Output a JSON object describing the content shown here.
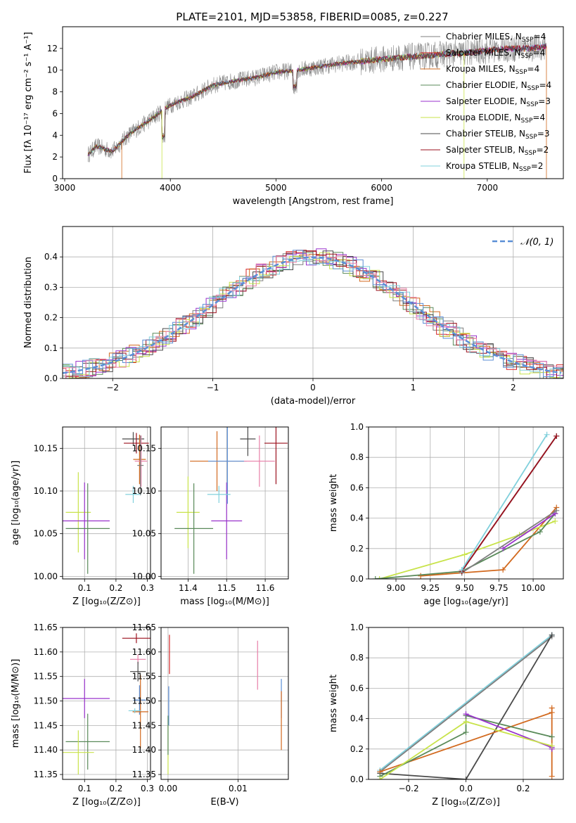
{
  "colors": {
    "gray": "#7f7f7f",
    "red": "#d62728",
    "orange": "#d2691e",
    "green": "#5a8a5a",
    "purple": "#9932cc",
    "yellow": "#c8e34a",
    "dark": "#4a4a4a",
    "darkred": "#9b111e",
    "cyan": "#80d0dc",
    "blue": "#5b8fd6",
    "pink": "#e87fa8",
    "grid": "#b0b0b0"
  },
  "legend_entries": [
    {
      "name": "Chabrier MILES, N$_{SSP}$=4",
      "label": "Chabrier MILES, N",
      "sub": "SSP",
      "tail": "=4",
      "color": "gray"
    },
    {
      "name": "Salpeter MILES, N$_{SSP}$=4",
      "label": "Salpeter MILES, N",
      "sub": "SSP",
      "tail": "=4",
      "color": "red"
    },
    {
      "name": "Kroupa MILES, N$_{SSP}$=4",
      "label": "Kroupa MILES, N",
      "sub": "SSP",
      "tail": "=4",
      "color": "orange"
    },
    {
      "name": "Chabrier ELODIE, N$_{SSP}$=4",
      "label": "Chabrier ELODIE, N",
      "sub": "SSP",
      "tail": "=4",
      "color": "green"
    },
    {
      "name": "Salpeter ELODIE, N$_{SSP}$=3",
      "label": "Salpeter ELODIE, N",
      "sub": "SSP",
      "tail": "=3",
      "color": "purple"
    },
    {
      "name": "Kroupa ELODIE, N$_{SSP}$=4",
      "label": "Kroupa ELODIE, N",
      "sub": "SSP",
      "tail": "=4",
      "color": "yellow"
    },
    {
      "name": "Chabrier STELIB, N$_{SSP}$=3",
      "label": "Chabrier STELIB, N",
      "sub": "SSP",
      "tail": "=3",
      "color": "dark"
    },
    {
      "name": "Salpeter STELIB, N$_{SSP}$=2",
      "label": "Salpeter STELIB, N",
      "sub": "SSP",
      "tail": "=2",
      "color": "darkred"
    },
    {
      "name": "Kroupa STELIB, N$_{SSP}$=2",
      "label": "Kroupa STELIB, N",
      "sub": "SSP",
      "tail": "=2",
      "color": "cyan"
    }
  ],
  "chart_data": [
    {
      "type": "line",
      "title": "PLATE=2101, MJD=53858, FIBERID=0085, z=0.227",
      "xlabel": "wavelength [Angstrom, rest frame]",
      "ylabel": "Flux [fλ 10⁻¹⁷ erg cm⁻² s⁻¹ A⁻¹]",
      "xlim": [
        2980,
        7720
      ],
      "ylim": [
        0,
        14
      ],
      "xticks": [
        3000,
        4000,
        5000,
        6000,
        7000
      ],
      "yticks": [
        0,
        2,
        4,
        6,
        8,
        10,
        12
      ],
      "legend": "upper right",
      "spectrum_envelope": {
        "x": [
          3220,
          3300,
          3450,
          3600,
          3700,
          3850,
          3950,
          4050,
          4200,
          4400,
          4600,
          4800,
          5000,
          5200,
          5400,
          5600,
          5800,
          6000,
          6200,
          6400,
          6600,
          6800,
          7000,
          7200,
          7400,
          7560
        ],
        "y": [
          2.2,
          3.0,
          2.5,
          4.0,
          4.7,
          5.7,
          6.5,
          7.0,
          7.5,
          8.6,
          9.0,
          9.3,
          9.8,
          10.0,
          10.3,
          10.6,
          10.8,
          11.0,
          11.2,
          11.3,
          11.5,
          11.6,
          11.8,
          12.0,
          12.0,
          12.2
        ]
      }
    },
    {
      "type": "line",
      "title": "",
      "xlabel": "(data-model)/error",
      "ylabel": "Normed distribution",
      "xlim": [
        -2.5,
        2.5
      ],
      "ylim": [
        0,
        0.5
      ],
      "xticks": [
        -2,
        -1,
        0,
        1,
        2
      ],
      "yticks": [
        0.0,
        0.1,
        0.2,
        0.3,
        0.4
      ],
      "legend": "upper right",
      "reference_curve": {
        "name": "𝒩(0, 1)",
        "mean": 0,
        "sigma": 1
      },
      "histogram_bin_width": 0.1
    },
    {
      "type": "scatter",
      "xlabel": "Z [log₁₀(Z/Z⊙)]",
      "ylabel": "age  [log₁₀(age/yr)]",
      "xlim": [
        0.03,
        0.31
      ],
      "ylim": [
        9.997,
        10.175
      ],
      "xticks": [
        0.1,
        0.2,
        0.3
      ],
      "yticks": [
        10.0,
        10.05,
        10.1,
        10.15
      ],
      "points": [
        {
          "color": "yellow",
          "x": 0.08,
          "xerr": 0.04,
          "y": 10.075,
          "yerr": 0.047
        },
        {
          "color": "purple",
          "x": 0.1,
          "xerr": 0.08,
          "y": 10.065,
          "yerr": 0.045
        },
        {
          "color": "green",
          "x": 0.11,
          "xerr": 0.07,
          "y": 10.056,
          "yerr": 0.053
        },
        {
          "color": "dark",
          "x": 0.255,
          "xerr": 0.035,
          "y": 10.161,
          "yerr": 0.008
        },
        {
          "color": "darkred",
          "x": 0.265,
          "xerr": 0.04,
          "y": 10.156,
          "yerr": 0.012
        },
        {
          "color": "orange",
          "x": 0.275,
          "xerr": 0.02,
          "y": 10.137,
          "yerr": 0.029
        },
        {
          "color": "pink",
          "x": 0.28,
          "xerr": 0.02,
          "y": 10.135,
          "yerr": 0.03
        },
        {
          "color": "cyan",
          "x": 0.255,
          "xerr": 0.025,
          "y": 10.096,
          "yerr": 0.01
        },
        {
          "color": "gray",
          "x": 0.278,
          "xerr": 0.01,
          "y": 10.13,
          "yerr": 0.035
        }
      ]
    },
    {
      "type": "scatter",
      "xlabel": "mass [log₁₀(M/M⊙)]",
      "ylabel": "",
      "xlim": [
        11.33,
        11.66
      ],
      "ylim": [
        9.997,
        10.175
      ],
      "xticks": [
        11.4,
        11.5,
        11.6
      ],
      "yticks": [
        10.0,
        10.05,
        10.1,
        10.15
      ],
      "points": [
        {
          "color": "yellow",
          "x": 11.4,
          "xerr": 0.03,
          "y": 10.075,
          "yerr": 0.042
        },
        {
          "color": "green",
          "x": 11.415,
          "xerr": 0.05,
          "y": 10.056,
          "yerr": 0.053
        },
        {
          "color": "purple",
          "x": 11.5,
          "xerr": 0.04,
          "y": 10.065,
          "yerr": 0.045
        },
        {
          "color": "orange",
          "x": 11.475,
          "xerr": 0.07,
          "y": 10.135,
          "yerr": 0.035
        },
        {
          "color": "blue",
          "x": 11.502,
          "xerr": 0.05,
          "y": 10.135,
          "yerr": 0.05
        },
        {
          "color": "cyan",
          "x": 11.48,
          "xerr": 0.03,
          "y": 10.096,
          "yerr": 0.01
        },
        {
          "color": "dark",
          "x": 11.555,
          "xerr": 0.02,
          "y": 10.161,
          "yerr": 0.02
        },
        {
          "color": "pink",
          "x": 11.585,
          "xerr": 0.04,
          "y": 10.135,
          "yerr": 0.03
        },
        {
          "color": "darkred",
          "x": 11.628,
          "xerr": 0.03,
          "y": 10.156,
          "yerr": 0.048
        }
      ]
    },
    {
      "type": "line",
      "xlabel": "age  [log₁₀(age/yr)]",
      "ylabel": "mass weight",
      "xlim": [
        8.8,
        10.22
      ],
      "ylim": [
        0,
        1
      ],
      "xticks": [
        9.0,
        9.25,
        9.5,
        9.75,
        10.0
      ],
      "yticks": [
        0.0,
        0.2,
        0.4,
        0.6,
        0.8,
        1.0
      ],
      "series": [
        {
          "color": "orange",
          "x": [
            9.18,
            9.48,
            9.78,
            10.17
          ],
          "y": [
            0.02,
            0.04,
            0.06,
            0.47
          ]
        },
        {
          "color": "yellow",
          "x": [
            8.88,
            9.5,
            9.9,
            10.16
          ],
          "y": [
            0.0,
            0.16,
            0.29,
            0.38
          ]
        },
        {
          "color": "green",
          "x": [
            8.85,
            9.48,
            10.05,
            10.16
          ],
          "y": [
            0.0,
            0.05,
            0.31,
            0.43
          ]
        },
        {
          "color": "purple",
          "x": [
            9.78,
            10.16
          ],
          "y": [
            0.2,
            0.43
          ]
        },
        {
          "color": "gray",
          "x": [
            9.48,
            10.17
          ],
          "y": [
            0.04,
            0.45
          ]
        },
        {
          "color": "dark",
          "x": [
            9.48,
            10.17
          ],
          "y": [
            0.05,
            0.94
          ]
        },
        {
          "color": "darkred",
          "x": [
            9.48,
            10.17
          ],
          "y": [
            0.05,
            0.94
          ]
        },
        {
          "color": "cyan",
          "x": [
            9.48,
            10.1
          ],
          "y": [
            0.06,
            0.95
          ]
        }
      ]
    },
    {
      "type": "scatter",
      "xlabel": "Z [log₁₀(Z/Z⊙)]",
      "ylabel": "mass [log₁₀(M/M⊙)]",
      "xlim": [
        0.03,
        0.31
      ],
      "ylim": [
        11.34,
        11.65
      ],
      "xticks": [
        0.1,
        0.2,
        0.3
      ],
      "yticks": [
        11.35,
        11.4,
        11.45,
        11.5,
        11.55,
        11.6,
        11.65
      ],
      "points": [
        {
          "color": "purple",
          "x": 0.1,
          "xerr": 0.08,
          "y": 11.505,
          "yerr": 0.04
        },
        {
          "color": "green",
          "x": 0.11,
          "xerr": 0.07,
          "y": 11.417,
          "yerr": 0.057
        },
        {
          "color": "yellow",
          "x": 0.08,
          "xerr": 0.05,
          "y": 11.395,
          "yerr": 0.045
        },
        {
          "color": "darkred",
          "x": 0.265,
          "xerr": 0.045,
          "y": 11.628,
          "yerr": 0.01
        },
        {
          "color": "pink",
          "x": 0.27,
          "xerr": 0.025,
          "y": 11.585,
          "yerr": 0.01
        },
        {
          "color": "dark",
          "x": 0.27,
          "xerr": 0.025,
          "y": 11.56,
          "yerr": 0.02
        },
        {
          "color": "blue",
          "x": 0.275,
          "xerr": 0.02,
          "y": 11.502,
          "yerr": 0.03
        },
        {
          "color": "orange",
          "x": 0.278,
          "xerr": 0.025,
          "y": 11.478,
          "yerr": 0.075
        },
        {
          "color": "cyan",
          "x": 0.26,
          "xerr": 0.02,
          "y": 11.48,
          "yerr": 0.005
        }
      ]
    },
    {
      "type": "scatter",
      "xlabel": "E(B-V)",
      "ylabel": "",
      "xlim": [
        -0.001,
        0.0172
      ],
      "ylim": [
        11.34,
        11.65
      ],
      "xticks": [
        0.0,
        0.01
      ],
      "yticks": [
        11.35,
        11.4,
        11.45,
        11.5,
        11.55,
        11.6,
        11.65
      ],
      "points": [
        {
          "color": "red",
          "x": 0.0002,
          "xerr": 0,
          "y": 11.595,
          "yerr": 0.04
        },
        {
          "color": "yellow",
          "x": 0.0,
          "xerr": 0,
          "y": 11.4,
          "yerr": 0.05
        },
        {
          "color": "blue",
          "x": 0.0001,
          "xerr": 0,
          "y": 11.49,
          "yerr": 0.04
        },
        {
          "color": "green",
          "x": 0.0,
          "xerr": 0,
          "y": 11.43,
          "yerr": 0.04
        },
        {
          "color": "pink",
          "x": 0.0128,
          "xerr": 0,
          "y": 11.573,
          "yerr": 0.05
        },
        {
          "color": "blue",
          "x": 0.0162,
          "xerr": 0,
          "y": 11.505,
          "yerr": 0.04
        },
        {
          "color": "orange",
          "x": 0.0162,
          "xerr": 0,
          "y": 11.46,
          "yerr": 0.06
        }
      ]
    },
    {
      "type": "line",
      "xlabel": "Z [log₁₀(Z/Z⊙)]",
      "ylabel": "mass weight",
      "xlim": [
        -0.34,
        0.34
      ],
      "ylim": [
        0,
        1
      ],
      "xticks": [
        -0.2,
        0.0,
        0.2
      ],
      "yticks": [
        0.0,
        0.2,
        0.4,
        0.6,
        0.8,
        1.0
      ],
      "series": [
        {
          "color": "cyan",
          "x": [
            -0.3,
            0.3
          ],
          "y": [
            0.06,
            0.95
          ]
        },
        {
          "color": "gray",
          "x": [
            -0.3,
            0.3
          ],
          "y": [
            0.05,
            0.94
          ]
        },
        {
          "color": "dark",
          "x": [
            -0.3,
            0.0,
            0.3
          ],
          "y": [
            0.04,
            0.0,
            0.95
          ]
        },
        {
          "color": "orange",
          "x": [
            -0.3,
            0.3,
            0.3,
            0.3
          ],
          "y": [
            0.05,
            0.44,
            0.47,
            0.02
          ]
        },
        {
          "color": "green",
          "x": [
            -0.3,
            0.0,
            0.0,
            0.3
          ],
          "y": [
            0.02,
            0.31,
            0.42,
            0.28
          ]
        },
        {
          "color": "purple",
          "x": [
            0.0,
            0.3,
            0.3
          ],
          "y": [
            0.43,
            0.21,
            0.2
          ]
        },
        {
          "color": "yellow",
          "x": [
            -0.3,
            0.0,
            0.3
          ],
          "y": [
            0.0,
            0.38,
            0.22
          ]
        }
      ]
    }
  ]
}
